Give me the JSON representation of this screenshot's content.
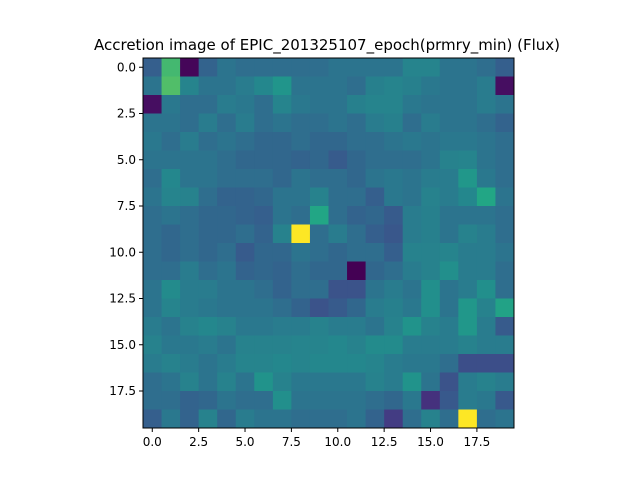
{
  "chart_data": {
    "type": "heatmap",
    "title": "Accretion image of EPIC_201325107_epoch(prmry_min) (Flux)",
    "xlabel": "",
    "ylabel": "",
    "colormap": "viridis",
    "x_ticks": [
      0.0,
      2.5,
      5.0,
      7.5,
      10.0,
      12.5,
      15.0,
      17.5
    ],
    "x_tick_labels": [
      "0.0",
      "2.5",
      "5.0",
      "7.5",
      "10.0",
      "12.5",
      "15.0",
      "17.5"
    ],
    "y_ticks": [
      0.0,
      2.5,
      5.0,
      7.5,
      10.0,
      12.5,
      15.0,
      17.5
    ],
    "y_tick_labels": [
      "0.0",
      "2.5",
      "5.0",
      "7.5",
      "10.0",
      "12.5",
      "15.0",
      "17.5"
    ],
    "xlim": [
      -0.5,
      19.5
    ],
    "ylim": [
      19.5,
      -0.5
    ],
    "vmin": 0,
    "vmax": 1,
    "grid": false,
    "matrix": [
      [
        0.38,
        0.8,
        0.02,
        0.4,
        0.48,
        0.45,
        0.45,
        0.45,
        0.45,
        0.45,
        0.48,
        0.48,
        0.48,
        0.48,
        0.56,
        0.56,
        0.48,
        0.48,
        0.45,
        0.38
      ],
      [
        0.48,
        0.82,
        0.56,
        0.48,
        0.48,
        0.52,
        0.58,
        0.65,
        0.48,
        0.48,
        0.48,
        0.45,
        0.54,
        0.56,
        0.54,
        0.5,
        0.48,
        0.48,
        0.52,
        0.05
      ],
      [
        0.05,
        0.5,
        0.45,
        0.45,
        0.52,
        0.5,
        0.45,
        0.56,
        0.5,
        0.48,
        0.48,
        0.54,
        0.56,
        0.56,
        0.5,
        0.48,
        0.48,
        0.48,
        0.52,
        0.48
      ],
      [
        0.48,
        0.48,
        0.45,
        0.52,
        0.45,
        0.52,
        0.45,
        0.48,
        0.45,
        0.45,
        0.48,
        0.45,
        0.52,
        0.54,
        0.45,
        0.52,
        0.48,
        0.48,
        0.45,
        0.4
      ],
      [
        0.5,
        0.45,
        0.52,
        0.45,
        0.48,
        0.45,
        0.42,
        0.42,
        0.45,
        0.42,
        0.42,
        0.45,
        0.45,
        0.48,
        0.5,
        0.48,
        0.5,
        0.5,
        0.48,
        0.45
      ],
      [
        0.48,
        0.48,
        0.48,
        0.48,
        0.45,
        0.42,
        0.42,
        0.42,
        0.4,
        0.42,
        0.36,
        0.42,
        0.45,
        0.45,
        0.45,
        0.48,
        0.55,
        0.56,
        0.48,
        0.45
      ],
      [
        0.45,
        0.58,
        0.48,
        0.48,
        0.45,
        0.45,
        0.45,
        0.42,
        0.48,
        0.45,
        0.45,
        0.42,
        0.48,
        0.5,
        0.48,
        0.52,
        0.52,
        0.66,
        0.5,
        0.45
      ],
      [
        0.48,
        0.56,
        0.55,
        0.45,
        0.4,
        0.4,
        0.42,
        0.48,
        0.48,
        0.55,
        0.45,
        0.45,
        0.38,
        0.5,
        0.48,
        0.55,
        0.52,
        0.58,
        0.74,
        0.48
      ],
      [
        0.45,
        0.48,
        0.45,
        0.42,
        0.42,
        0.4,
        0.38,
        0.48,
        0.45,
        0.74,
        0.45,
        0.4,
        0.42,
        0.36,
        0.52,
        0.54,
        0.48,
        0.48,
        0.48,
        0.45
      ],
      [
        0.45,
        0.42,
        0.45,
        0.42,
        0.42,
        0.45,
        0.4,
        0.55,
        1.0,
        0.45,
        0.52,
        0.45,
        0.38,
        0.34,
        0.52,
        0.54,
        0.48,
        0.55,
        0.52,
        0.45
      ],
      [
        0.45,
        0.42,
        0.45,
        0.42,
        0.45,
        0.36,
        0.42,
        0.42,
        0.48,
        0.45,
        0.42,
        0.45,
        0.45,
        0.38,
        0.55,
        0.55,
        0.56,
        0.52,
        0.52,
        0.48
      ],
      [
        0.45,
        0.45,
        0.52,
        0.45,
        0.48,
        0.4,
        0.42,
        0.4,
        0.45,
        0.42,
        0.42,
        0.0,
        0.42,
        0.45,
        0.52,
        0.55,
        0.62,
        0.52,
        0.52,
        0.45
      ],
      [
        0.48,
        0.6,
        0.52,
        0.52,
        0.48,
        0.48,
        0.45,
        0.4,
        0.45,
        0.45,
        0.32,
        0.32,
        0.48,
        0.52,
        0.48,
        0.62,
        0.48,
        0.52,
        0.62,
        0.45
      ],
      [
        0.48,
        0.56,
        0.52,
        0.5,
        0.48,
        0.48,
        0.48,
        0.45,
        0.4,
        0.32,
        0.36,
        0.42,
        0.52,
        0.54,
        0.5,
        0.62,
        0.48,
        0.66,
        0.55,
        0.72
      ],
      [
        0.52,
        0.48,
        0.55,
        0.58,
        0.55,
        0.5,
        0.5,
        0.52,
        0.52,
        0.55,
        0.52,
        0.52,
        0.48,
        0.55,
        0.64,
        0.55,
        0.52,
        0.66,
        0.52,
        0.36
      ],
      [
        0.55,
        0.5,
        0.5,
        0.52,
        0.48,
        0.55,
        0.55,
        0.55,
        0.56,
        0.56,
        0.58,
        0.55,
        0.6,
        0.6,
        0.52,
        0.52,
        0.52,
        0.55,
        0.52,
        0.52
      ],
      [
        0.52,
        0.55,
        0.52,
        0.48,
        0.52,
        0.56,
        0.56,
        0.58,
        0.56,
        0.58,
        0.58,
        0.58,
        0.56,
        0.52,
        0.5,
        0.5,
        0.45,
        0.3,
        0.3,
        0.3
      ],
      [
        0.45,
        0.48,
        0.55,
        0.48,
        0.55,
        0.48,
        0.64,
        0.55,
        0.5,
        0.5,
        0.5,
        0.5,
        0.55,
        0.52,
        0.64,
        0.48,
        0.32,
        0.52,
        0.55,
        0.52
      ],
      [
        0.45,
        0.45,
        0.4,
        0.42,
        0.48,
        0.45,
        0.45,
        0.62,
        0.48,
        0.48,
        0.48,
        0.48,
        0.45,
        0.42,
        0.5,
        0.18,
        0.35,
        0.52,
        0.5,
        0.35
      ],
      [
        0.38,
        0.5,
        0.4,
        0.55,
        0.42,
        0.52,
        0.48,
        0.48,
        0.45,
        0.45,
        0.45,
        0.48,
        0.4,
        0.22,
        0.45,
        0.55,
        0.45,
        1.0,
        0.45,
        0.48
      ]
    ]
  }
}
